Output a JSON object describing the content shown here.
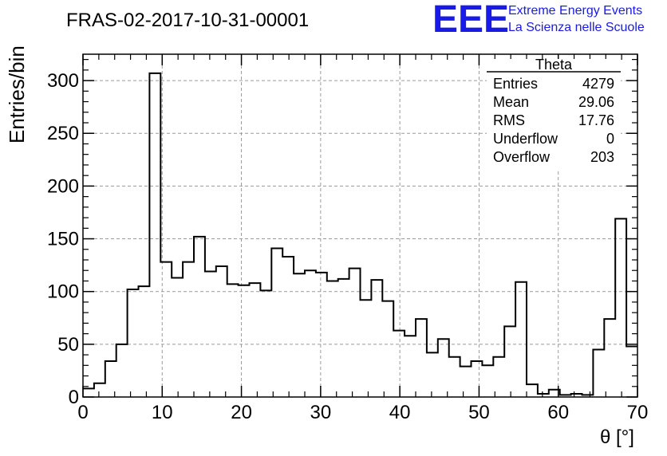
{
  "chart_data": {
    "type": "bar",
    "title": "FRAS-02-2017-10-31-00001",
    "xlabel": "θ [°]",
    "ylabel": "Entries/bin",
    "xlim": [
      0,
      70
    ],
    "ylim": [
      0,
      325
    ],
    "grid": true,
    "bin_width": 1.4,
    "x_ticks": [
      "0",
      "10",
      "20",
      "30",
      "40",
      "50",
      "60",
      "70"
    ],
    "y_ticks": [
      "0",
      "50",
      "100",
      "150",
      "200",
      "250",
      "300"
    ],
    "values": [
      8,
      13,
      34,
      50,
      102,
      105,
      307,
      128,
      113,
      128,
      152,
      119,
      124,
      107,
      106,
      108,
      101,
      141,
      133,
      117,
      120,
      118,
      110,
      112,
      122,
      92,
      111,
      91,
      63,
      58,
      74,
      42,
      55,
      38,
      29,
      34,
      30,
      38,
      67,
      109,
      12,
      3,
      7,
      2,
      3,
      2,
      45,
      74,
      169,
      48
    ],
    "stats_box": {
      "title": "Theta",
      "position": "top-right",
      "rows": [
        {
          "label": "Entries",
          "value": "4279"
        },
        {
          "label": "Mean",
          "value": "29.06"
        },
        {
          "label": "RMS",
          "value": "17.76"
        },
        {
          "label": "Underflow",
          "value": "0"
        },
        {
          "label": "Overflow",
          "value": "203"
        }
      ]
    }
  },
  "logo": {
    "mark": "EEE",
    "line1": "Extreme Energy Events",
    "line2": "La Scienza nelle Scuole",
    "color": "#1a1ae6"
  }
}
